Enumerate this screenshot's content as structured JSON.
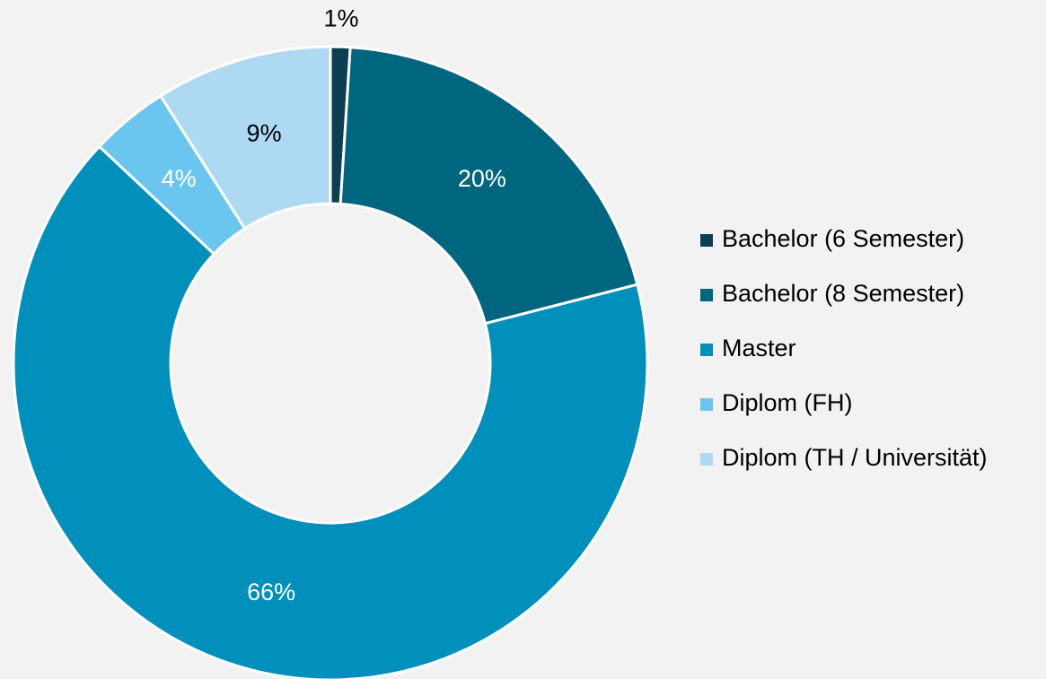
{
  "chart_data": {
    "type": "donut",
    "categories": [
      "Bachelor (6 Semester)",
      "Bachelor (8 Semester)",
      "Master",
      "Diplom (FH)",
      "Diplom (TH / Universität)"
    ],
    "values": [
      1,
      20,
      66,
      4,
      9
    ],
    "value_labels": [
      "1%",
      "20%",
      "66%",
      "4%",
      "9%"
    ],
    "colors": [
      "#0d3f52",
      "#00657f",
      "#0090bb",
      "#6ac6ee",
      "#aed9f3"
    ],
    "label_colors": [
      "#000000",
      "#ffffff",
      "#ffffff",
      "#ffffff",
      "#000000"
    ],
    "legend": "right"
  }
}
